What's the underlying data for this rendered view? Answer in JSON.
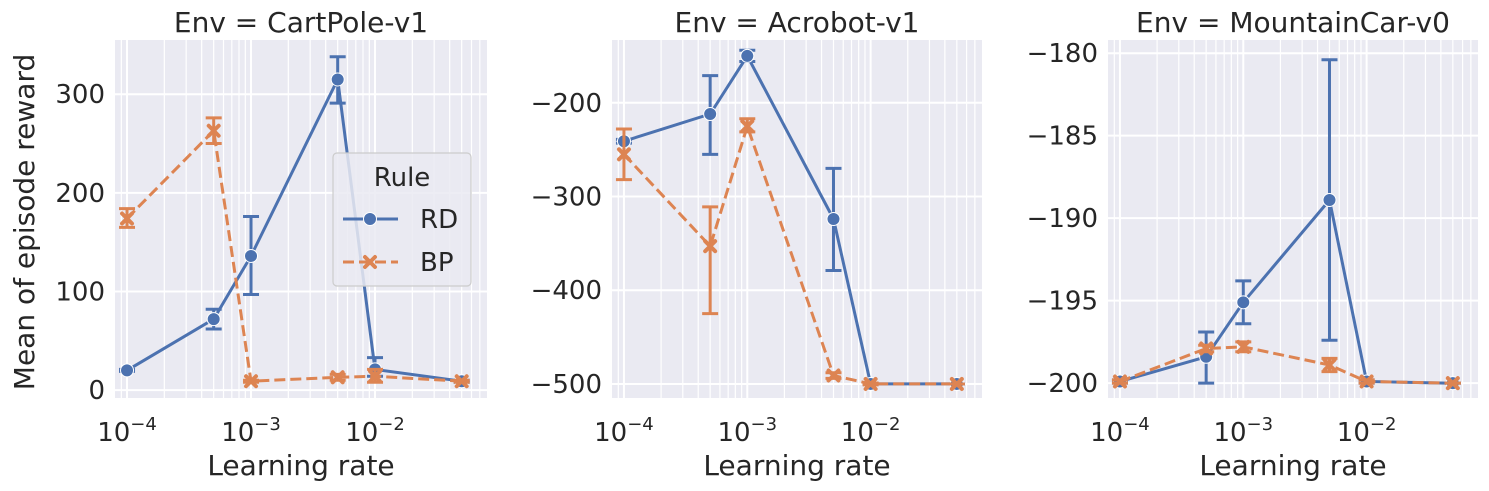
{
  "figure": {
    "ylabel": "Mean of episode reward",
    "xlabel": "Learning rate",
    "legend": {
      "title": "Rule",
      "placement": "center-right of first panel"
    }
  },
  "colors": {
    "RD": "#4c72b0",
    "BP": "#dd8452",
    "background": "#eaeaf2",
    "grid": "#ffffff"
  },
  "chart_data": [
    {
      "type": "line",
      "title": "Env = CartPole-v1",
      "xlabel": "Learning rate",
      "ylabel": "Mean of episode reward",
      "xscale": "log",
      "xlim": [
        8e-05,
        0.08
      ],
      "ylim": [
        -8,
        355
      ],
      "yticks": [
        0,
        100,
        200,
        300
      ],
      "xticks": [
        0.0001,
        0.001,
        0.01
      ],
      "xtick_labels": [
        {
          "base": "10",
          "exp": "−4"
        },
        {
          "base": "10",
          "exp": "−3"
        },
        {
          "base": "10",
          "exp": "−2"
        }
      ],
      "grid": true,
      "legend": true,
      "series": [
        {
          "name": "RD",
          "marker": "circle",
          "dash": "solid",
          "x": [
            0.0001,
            0.0005,
            0.001,
            0.005,
            0.01,
            0.05
          ],
          "y": [
            20,
            72,
            136,
            315,
            21,
            9
          ],
          "err_low": [
            19,
            62,
            97,
            291,
            14,
            8
          ],
          "err_high": [
            21,
            82,
            176,
            338,
            33,
            10
          ]
        },
        {
          "name": "BP",
          "marker": "x",
          "dash": "dashed",
          "x": [
            0.0001,
            0.0005,
            0.001,
            0.005,
            0.01,
            0.05
          ],
          "y": [
            174,
            263,
            9,
            13,
            14,
            9
          ],
          "err_low": [
            165,
            250,
            8,
            10,
            8,
            8
          ],
          "err_high": [
            184,
            276,
            10,
            16,
            21,
            10
          ]
        }
      ]
    },
    {
      "type": "line",
      "title": "Env = Acrobot-v1",
      "xlabel": "Learning rate",
      "ylabel": "",
      "xscale": "log",
      "xlim": [
        8e-05,
        0.08
      ],
      "ylim": [
        -515,
        -133
      ],
      "yticks": [
        -500,
        -400,
        -300,
        -200
      ],
      "xticks": [
        0.0001,
        0.001,
        0.01
      ],
      "xtick_labels": [
        {
          "base": "10",
          "exp": "−4"
        },
        {
          "base": "10",
          "exp": "−3"
        },
        {
          "base": "10",
          "exp": "−2"
        }
      ],
      "grid": true,
      "legend": false,
      "series": [
        {
          "name": "RD",
          "marker": "circle",
          "dash": "solid",
          "x": [
            0.0001,
            0.0005,
            0.001,
            0.005,
            0.01,
            0.05
          ],
          "y": [
            -241,
            -212,
            -150,
            -324,
            -500,
            -500
          ],
          "err_low": [
            -243,
            -255,
            -156,
            -379,
            -500,
            -500
          ],
          "err_high": [
            -239,
            -171,
            -144,
            -270,
            -500,
            -500
          ]
        },
        {
          "name": "BP",
          "marker": "x",
          "dash": "dashed",
          "x": [
            0.0001,
            0.0005,
            0.001,
            0.005,
            0.01,
            0.05
          ],
          "y": [
            -255,
            -353,
            -225,
            -491,
            -500,
            -500
          ],
          "err_low": [
            -282,
            -425,
            -231,
            -494,
            -501,
            -500
          ],
          "err_high": [
            -228,
            -311,
            -217,
            -488,
            -499,
            -500
          ]
        }
      ]
    },
    {
      "type": "line",
      "title": "Env = MountainCar-v0",
      "xlabel": "Learning rate",
      "ylabel": "",
      "xscale": "log",
      "xlim": [
        8e-05,
        0.08
      ],
      "ylim": [
        -200.9,
        -179.2
      ],
      "yticks": [
        -200,
        -195,
        -190,
        -185,
        -180
      ],
      "xticks": [
        0.0001,
        0.001,
        0.01
      ],
      "xtick_labels": [
        {
          "base": "10",
          "exp": "−4"
        },
        {
          "base": "10",
          "exp": "−3"
        },
        {
          "base": "10",
          "exp": "−2"
        }
      ],
      "grid": true,
      "legend": false,
      "series": [
        {
          "name": "RD",
          "marker": "circle",
          "dash": "solid",
          "x": [
            0.0001,
            0.0005,
            0.001,
            0.005,
            0.01,
            0.05
          ],
          "y": [
            -199.9,
            -198.4,
            -195.1,
            -188.9,
            -199.9,
            -200.0
          ],
          "err_low": [
            -200.0,
            -200.0,
            -196.4,
            -197.4,
            -200.0,
            -200.0
          ],
          "err_high": [
            -199.8,
            -196.9,
            -193.8,
            -180.4,
            -199.8,
            -200.0
          ]
        },
        {
          "name": "BP",
          "marker": "x",
          "dash": "dashed",
          "x": [
            0.0001,
            0.0005,
            0.001,
            0.005,
            0.01,
            0.05
          ],
          "y": [
            -199.9,
            -197.9,
            -197.8,
            -198.9,
            -199.9,
            -200.0
          ],
          "err_low": [
            -200.0,
            -198.1,
            -198.1,
            -199.3,
            -200.0,
            -200.0
          ],
          "err_high": [
            -199.8,
            -197.7,
            -197.5,
            -198.5,
            -199.8,
            -200.0
          ]
        }
      ]
    }
  ]
}
